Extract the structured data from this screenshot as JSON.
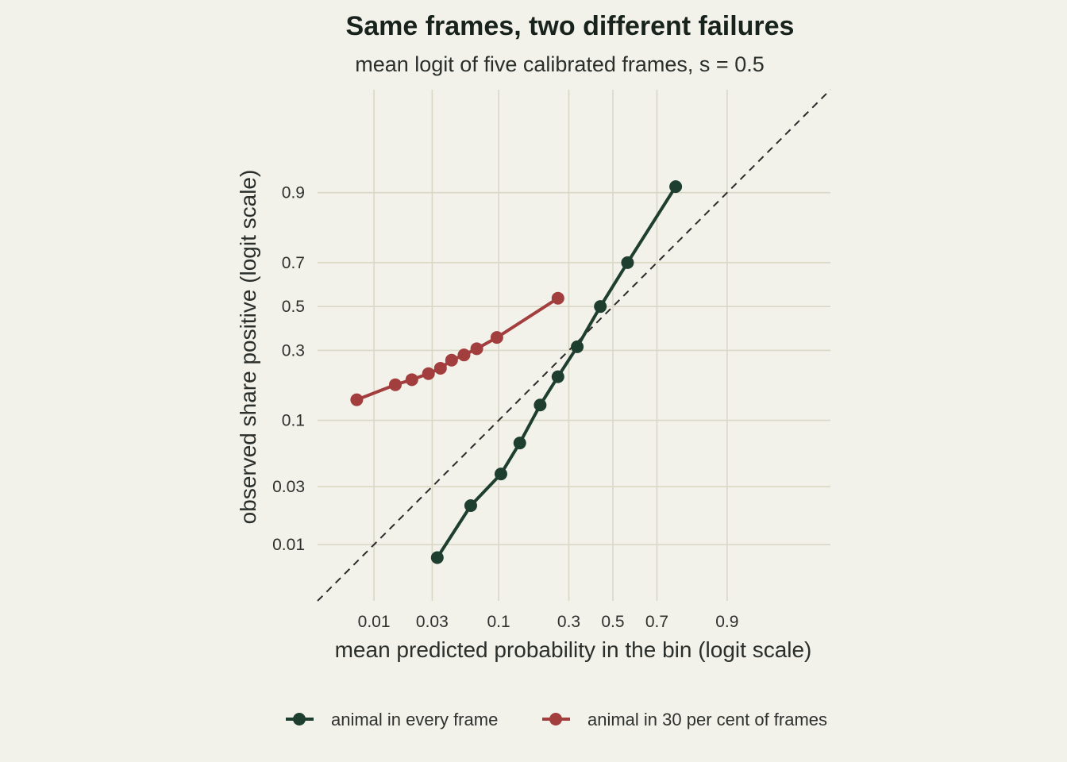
{
  "chart_data": {
    "type": "line",
    "title": "Same frames, two different failures",
    "subtitle": "mean logit of five calibrated frames, s = 0.5",
    "xlabel": "mean predicted probability in the bin (logit scale)",
    "ylabel": "observed share positive (logit scale)",
    "x_scale": "logit",
    "y_scale": "logit",
    "xlim": [
      0.0034,
      0.985
    ],
    "ylim": [
      0.0034,
      0.985
    ],
    "x_ticks": [
      0.01,
      0.03,
      0.1,
      0.3,
      0.5,
      0.7,
      0.9
    ],
    "x_tick_labels": [
      "0.01",
      "0.03",
      "0.1",
      "0.3",
      "0.5",
      "0.7",
      "0.9"
    ],
    "y_ticks": [
      0.01,
      0.03,
      0.1,
      0.3,
      0.5,
      0.7,
      0.9
    ],
    "y_tick_labels": [
      "0.01",
      "0.03",
      "0.1",
      "0.3",
      "0.5",
      "0.7",
      "0.9"
    ],
    "grid": true,
    "reference_line": "y = x (dashed)",
    "legend_position": "bottom",
    "series": [
      {
        "name": "animal in every frame",
        "color": "#1e3f2f",
        "x": [
          0.033,
          0.061,
          0.104,
          0.143,
          0.198,
          0.258,
          0.335,
          0.44,
          0.57,
          0.77
        ],
        "y": [
          0.0078,
          0.021,
          0.038,
          0.067,
          0.13,
          0.205,
          0.315,
          0.5,
          0.7,
          0.91
        ]
      },
      {
        "name": "animal in 30 per cent of frames",
        "color": "#a33e3e",
        "x": [
          0.0072,
          0.015,
          0.0205,
          0.028,
          0.035,
          0.043,
          0.054,
          0.068,
          0.097,
          0.258
        ],
        "y": [
          0.142,
          0.181,
          0.196,
          0.215,
          0.233,
          0.262,
          0.282,
          0.307,
          0.355,
          0.54
        ]
      }
    ]
  }
}
